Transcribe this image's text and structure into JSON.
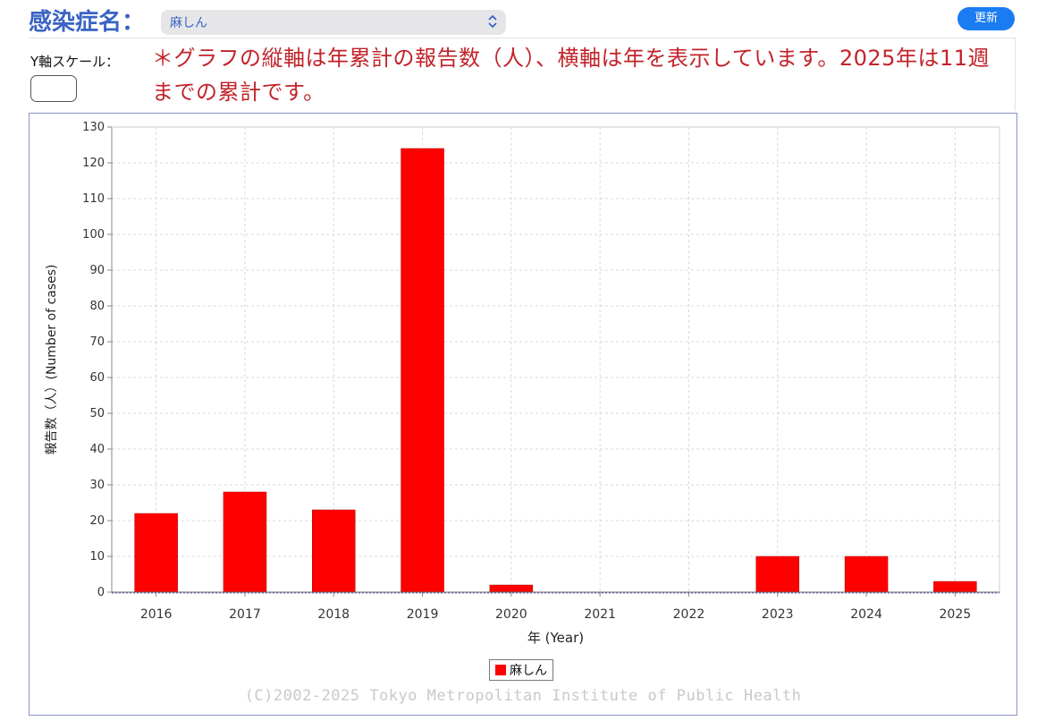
{
  "header": {
    "disease_label": "感染症名：",
    "selected_disease": "麻しん",
    "update_button": "更新"
  },
  "controls": {
    "yscale_label": "Y軸スケール：",
    "yscale_value": ""
  },
  "note": "＊グラフの縦軸は年累計の報告数（人）、横軸は年を表示しています。2025年は11週までの累計です。",
  "copyright": "(C)2002-2025 Tokyo Metropolitan Institute of Public Health",
  "colors": {
    "bar": "#ff0000",
    "accent": "#3a63c4",
    "button": "#1b7cf2",
    "note": "#c2232a"
  },
  "chart_data": {
    "type": "bar",
    "categories": [
      "2016",
      "2017",
      "2018",
      "2019",
      "2020",
      "2021",
      "2022",
      "2023",
      "2024",
      "2025"
    ],
    "series": [
      {
        "name": "麻しん",
        "values": [
          22,
          28,
          23,
          124,
          2,
          0,
          0,
          10,
          10,
          3
        ]
      }
    ],
    "xlabel": "年 (Year)",
    "ylabel": "報告数（人）(Number of cases)",
    "ylim": [
      0,
      130
    ],
    "yticks": [
      0,
      10,
      20,
      30,
      40,
      50,
      60,
      70,
      80,
      90,
      100,
      110,
      120,
      130
    ],
    "grid": true,
    "legend": "bottom-center"
  }
}
